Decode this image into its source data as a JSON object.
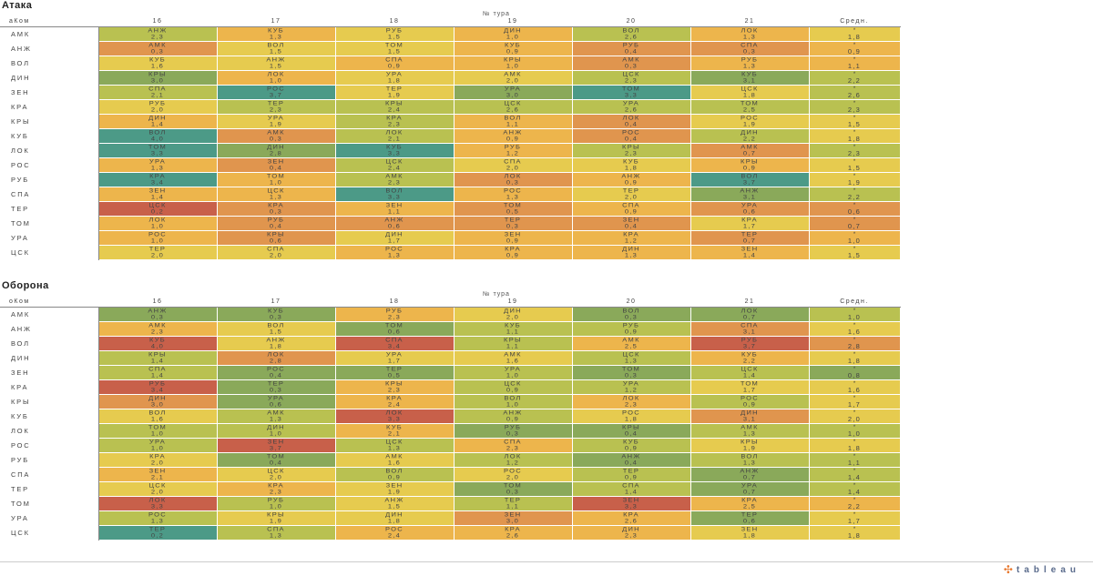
{
  "tour_label": "№ тура",
  "team_header": "аКом",
  "avg_header": "Средн.",
  "avg_marker": "*",
  "rounds": [
    "16",
    "17",
    "18",
    "19",
    "20",
    "21"
  ],
  "teams": [
    "АМК",
    "АНЖ",
    "ВОЛ",
    "ДИН",
    "ЗЕН",
    "КРА",
    "КРЫ",
    "КУБ",
    "ЛОК",
    "РОС",
    "РУБ",
    "СПА",
    "ТЕР",
    "ТОМ",
    "УРА",
    "ЦСК"
  ],
  "colors": {
    "red": "#c8604a",
    "orange": "#e0954e",
    "amber": "#edb54c",
    "yellow": "#e6cb4f",
    "lime": "#b9c151",
    "green": "#8aa95a",
    "teal": "#4c9a87"
  },
  "chart_data": [
    {
      "type": "heatmap",
      "title": "Атака",
      "xlabel": "№ тура",
      "ylabel": "аКом",
      "rows": [
        {
          "team": "АМК",
          "cells": [
            [
              "АНЖ",
              "2,3"
            ],
            [
              "КУБ",
              "1,3"
            ],
            [
              "РУБ",
              "1,5"
            ],
            [
              "ДИН",
              "1,0"
            ],
            [
              "ВОЛ",
              "2,6"
            ],
            [
              "ЛОК",
              "1,3"
            ]
          ],
          "avg": "1,8"
        },
        {
          "team": "АНЖ",
          "cells": [
            [
              "АМК",
              "0,3"
            ],
            [
              "ВОЛ",
              "1,5"
            ],
            [
              "ТОМ",
              "1,5"
            ],
            [
              "КУБ",
              "0,9"
            ],
            [
              "РУБ",
              "0,4"
            ],
            [
              "СПА",
              "0,3"
            ]
          ],
          "avg": "0,9"
        },
        {
          "team": "ВОЛ",
          "cells": [
            [
              "КУБ",
              "1,6"
            ],
            [
              "АНЖ",
              "1,5"
            ],
            [
              "СПА",
              "0,9"
            ],
            [
              "КРЫ",
              "1,0"
            ],
            [
              "АМК",
              "0,3"
            ],
            [
              "РУБ",
              "1,3"
            ]
          ],
          "avg": "1,1"
        },
        {
          "team": "ДИН",
          "cells": [
            [
              "КРЫ",
              "3,0"
            ],
            [
              "ЛОК",
              "1,0"
            ],
            [
              "УРА",
              "1,8"
            ],
            [
              "АМК",
              "2,0"
            ],
            [
              "ЦСК",
              "2,3"
            ],
            [
              "КУБ",
              "3,1"
            ]
          ],
          "avg": "2,2"
        },
        {
          "team": "ЗЕН",
          "cells": [
            [
              "СПА",
              "2,1"
            ],
            [
              "РОС",
              "3,7"
            ],
            [
              "ТЕР",
              "1,9"
            ],
            [
              "УРА",
              "3,0"
            ],
            [
              "ТОМ",
              "3,3"
            ],
            [
              "ЦСК",
              "1,8"
            ]
          ],
          "avg": "2,6"
        },
        {
          "team": "КРА",
          "cells": [
            [
              "РУБ",
              "2,0"
            ],
            [
              "ТЕР",
              "2,3"
            ],
            [
              "КРЫ",
              "2,4"
            ],
            [
              "ЦСК",
              "2,6"
            ],
            [
              "УРА",
              "2,6"
            ],
            [
              "ТОМ",
              "2,5"
            ]
          ],
          "avg": "2,3"
        },
        {
          "team": "КРЫ",
          "cells": [
            [
              "ДИН",
              "1,4"
            ],
            [
              "УРА",
              "1,9"
            ],
            [
              "КРА",
              "2,3"
            ],
            [
              "ВОЛ",
              "1,1"
            ],
            [
              "ЛОК",
              "0,4"
            ],
            [
              "РОС",
              "1,9"
            ]
          ],
          "avg": "1,5"
        },
        {
          "team": "КУБ",
          "cells": [
            [
              "ВОЛ",
              "4,0"
            ],
            [
              "АМК",
              "0,3"
            ],
            [
              "ЛОК",
              "2,1"
            ],
            [
              "АНЖ",
              "0,9"
            ],
            [
              "РОС",
              "0,4"
            ],
            [
              "ДИН",
              "2,2"
            ]
          ],
          "avg": "1,8"
        },
        {
          "team": "ЛОК",
          "cells": [
            [
              "ТОМ",
              "3,3"
            ],
            [
              "ДИН",
              "2,8"
            ],
            [
              "КУБ",
              "3,3"
            ],
            [
              "РУБ",
              "1,2"
            ],
            [
              "КРЫ",
              "2,3"
            ],
            [
              "АМК",
              "0,7"
            ]
          ],
          "avg": "2,3"
        },
        {
          "team": "РОС",
          "cells": [
            [
              "УРА",
              "1,3"
            ],
            [
              "ЗЕН",
              "0,4"
            ],
            [
              "ЦСК",
              "2,4"
            ],
            [
              "СПА",
              "2,0"
            ],
            [
              "КУБ",
              "1,8"
            ],
            [
              "КРЫ",
              "0,9"
            ]
          ],
          "avg": "1,5"
        },
        {
          "team": "РУБ",
          "cells": [
            [
              "КРА",
              "3,4"
            ],
            [
              "ТОМ",
              "1,0"
            ],
            [
              "АМК",
              "2,3"
            ],
            [
              "ЛОК",
              "0,3"
            ],
            [
              "АНЖ",
              "0,9"
            ],
            [
              "ВОЛ",
              "3,7"
            ]
          ],
          "avg": "1,9"
        },
        {
          "team": "СПА",
          "cells": [
            [
              "ЗЕН",
              "1,4"
            ],
            [
              "ЦСК",
              "1,3"
            ],
            [
              "ВОЛ",
              "3,3"
            ],
            [
              "РОС",
              "1,3"
            ],
            [
              "ТЕР",
              "2,0"
            ],
            [
              "АНЖ",
              "3,1"
            ]
          ],
          "avg": "2,2"
        },
        {
          "team": "ТЕР",
          "cells": [
            [
              "ЦСК",
              "0,2"
            ],
            [
              "КРА",
              "0,3"
            ],
            [
              "ЗЕН",
              "1,1"
            ],
            [
              "ТОМ",
              "0,5"
            ],
            [
              "СПА",
              "0,9"
            ],
            [
              "УРА",
              "0,6"
            ]
          ],
          "avg": "0,6"
        },
        {
          "team": "ТОМ",
          "cells": [
            [
              "ЛОК",
              "1,0"
            ],
            [
              "РУБ",
              "0,4"
            ],
            [
              "АНЖ",
              "0,6"
            ],
            [
              "ТЕР",
              "0,3"
            ],
            [
              "ЗЕН",
              "0,4"
            ],
            [
              "КРА",
              "1,7"
            ]
          ],
          "avg": "0,7"
        },
        {
          "team": "УРА",
          "cells": [
            [
              "РОС",
              "1,0"
            ],
            [
              "КРЫ",
              "0,6"
            ],
            [
              "ДИН",
              "1,7"
            ],
            [
              "ЗЕН",
              "0,9"
            ],
            [
              "КРА",
              "1,2"
            ],
            [
              "ТЕР",
              "0,7"
            ]
          ],
          "avg": "1,0"
        },
        {
          "team": "ЦСК",
          "cells": [
            [
              "ТЕР",
              "2,0"
            ],
            [
              "СПА",
              "2,0"
            ],
            [
              "РОС",
              "1,3"
            ],
            [
              "КРА",
              "0,9"
            ],
            [
              "ДИН",
              "1,3"
            ],
            [
              "ЗЕН",
              "1,4"
            ]
          ],
          "avg": "1,5"
        }
      ]
    },
    {
      "type": "heatmap",
      "title": "Оборона",
      "xlabel": "№ тура",
      "ylabel": "оКом",
      "rows": [
        {
          "team": "АМК",
          "cells": [
            [
              "АНЖ",
              "0,3"
            ],
            [
              "КУБ",
              "0,3"
            ],
            [
              "РУБ",
              "2,3"
            ],
            [
              "ДИН",
              "2,0"
            ],
            [
              "ВОЛ",
              "0,3"
            ],
            [
              "ЛОК",
              "0,7"
            ]
          ],
          "avg": "1,0"
        },
        {
          "team": "АНЖ",
          "cells": [
            [
              "АМК",
              "2,3"
            ],
            [
              "ВОЛ",
              "1,5"
            ],
            [
              "ТОМ",
              "0,6"
            ],
            [
              "КУБ",
              "1,1"
            ],
            [
              "РУБ",
              "0,9"
            ],
            [
              "СПА",
              "3,1"
            ]
          ],
          "avg": "1,6"
        },
        {
          "team": "ВОЛ",
          "cells": [
            [
              "КУБ",
              "4,0"
            ],
            [
              "АНЖ",
              "1,8"
            ],
            [
              "СПА",
              "3,4"
            ],
            [
              "КРЫ",
              "1,1"
            ],
            [
              "АМК",
              "2,5"
            ],
            [
              "РУБ",
              "3,7"
            ]
          ],
          "avg": "2,8"
        },
        {
          "team": "ДИН",
          "cells": [
            [
              "КРЫ",
              "1,4"
            ],
            [
              "ЛОК",
              "2,8"
            ],
            [
              "УРА",
              "1,7"
            ],
            [
              "АМК",
              "1,6"
            ],
            [
              "ЦСК",
              "1,3"
            ],
            [
              "КУБ",
              "2,2"
            ]
          ],
          "avg": "1,8"
        },
        {
          "team": "ЗЕН",
          "cells": [
            [
              "СПА",
              "1,4"
            ],
            [
              "РОС",
              "0,4"
            ],
            [
              "ТЕР",
              "0,5"
            ],
            [
              "УРА",
              "1,0"
            ],
            [
              "ТОМ",
              "0,3"
            ],
            [
              "ЦСК",
              "1,4"
            ]
          ],
          "avg": "0,8"
        },
        {
          "team": "КРА",
          "cells": [
            [
              "РУБ",
              "3,4"
            ],
            [
              "ТЕР",
              "0,3"
            ],
            [
              "КРЫ",
              "2,3"
            ],
            [
              "ЦСК",
              "0,9"
            ],
            [
              "УРА",
              "1,2"
            ],
            [
              "ТОМ",
              "1,7"
            ]
          ],
          "avg": "1,6"
        },
        {
          "team": "КРЫ",
          "cells": [
            [
              "ДИН",
              "3,0"
            ],
            [
              "УРА",
              "0,6"
            ],
            [
              "КРА",
              "2,4"
            ],
            [
              "ВОЛ",
              "1,0"
            ],
            [
              "ЛОК",
              "2,3"
            ],
            [
              "РОС",
              "0,9"
            ]
          ],
          "avg": "1,7"
        },
        {
          "team": "КУБ",
          "cells": [
            [
              "ВОЛ",
              "1,6"
            ],
            [
              "АМК",
              "1,3"
            ],
            [
              "ЛОК",
              "3,3"
            ],
            [
              "АНЖ",
              "0,9"
            ],
            [
              "РОС",
              "1,8"
            ],
            [
              "ДИН",
              "3,1"
            ]
          ],
          "avg": "2,0"
        },
        {
          "team": "ЛОК",
          "cells": [
            [
              "ТОМ",
              "1,0"
            ],
            [
              "ДИН",
              "1,0"
            ],
            [
              "КУБ",
              "2,1"
            ],
            [
              "РУБ",
              "0,3"
            ],
            [
              "КРЫ",
              "0,4"
            ],
            [
              "АМК",
              "1,3"
            ]
          ],
          "avg": "1,0"
        },
        {
          "team": "РОС",
          "cells": [
            [
              "УРА",
              "1,0"
            ],
            [
              "ЗЕН",
              "3,7"
            ],
            [
              "ЦСК",
              "1,3"
            ],
            [
              "СПА",
              "2,3"
            ],
            [
              "КУБ",
              "0,9"
            ],
            [
              "КРЫ",
              "1,9"
            ]
          ],
          "avg": "1,8"
        },
        {
          "team": "РУБ",
          "cells": [
            [
              "КРА",
              "2,0"
            ],
            [
              "ТОМ",
              "0,4"
            ],
            [
              "АМК",
              "1,6"
            ],
            [
              "ЛОК",
              "1,2"
            ],
            [
              "АНЖ",
              "0,4"
            ],
            [
              "ВОЛ",
              "1,3"
            ]
          ],
          "avg": "1,1"
        },
        {
          "team": "СПА",
          "cells": [
            [
              "ЗЕН",
              "2,1"
            ],
            [
              "ЦСК",
              "2,0"
            ],
            [
              "ВОЛ",
              "0,9"
            ],
            [
              "РОС",
              "2,0"
            ],
            [
              "ТЕР",
              "0,9"
            ],
            [
              "АНЖ",
              "0,7"
            ]
          ],
          "avg": "1,4"
        },
        {
          "team": "ТЕР",
          "cells": [
            [
              "ЦСК",
              "2,0"
            ],
            [
              "КРА",
              "2,3"
            ],
            [
              "ЗЕН",
              "1,9"
            ],
            [
              "ТОМ",
              "0,3"
            ],
            [
              "СПА",
              "1,4"
            ],
            [
              "УРА",
              "0,7"
            ]
          ],
          "avg": "1,4"
        },
        {
          "team": "ТОМ",
          "cells": [
            [
              "ЛОК",
              "3,3"
            ],
            [
              "РУБ",
              "1,0"
            ],
            [
              "АНЖ",
              "1,5"
            ],
            [
              "ТЕР",
              "1,1"
            ],
            [
              "ЗЕН",
              "3,3"
            ],
            [
              "КРА",
              "2,5"
            ]
          ],
          "avg": "2,2"
        },
        {
          "team": "УРА",
          "cells": [
            [
              "РОС",
              "1,3"
            ],
            [
              "КРЫ",
              "1,9"
            ],
            [
              "ДИН",
              "1,8"
            ],
            [
              "ЗЕН",
              "3,0"
            ],
            [
              "КРА",
              "2,6"
            ],
            [
              "ТЕР",
              "0,6"
            ]
          ],
          "avg": "1,7"
        },
        {
          "team": "ЦСК",
          "cells": [
            [
              "ТЕР",
              "0,2"
            ],
            [
              "СПА",
              "1,3"
            ],
            [
              "РОС",
              "2,4"
            ],
            [
              "КРА",
              "2,6"
            ],
            [
              "ДИН",
              "2,3"
            ],
            [
              "ЗЕН",
              "1,8"
            ]
          ],
          "avg": "1,8"
        }
      ]
    }
  ],
  "footer": {
    "logo_text": "tableau",
    "logo_mark": "✣"
  }
}
